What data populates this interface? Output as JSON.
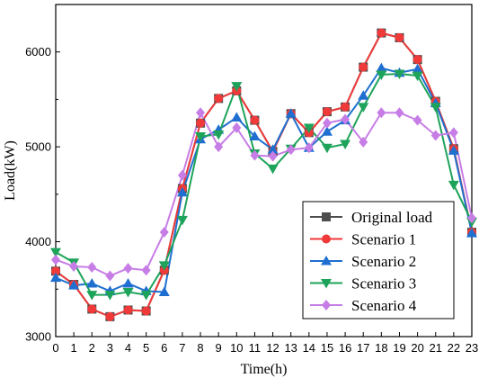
{
  "chart_data": {
    "type": "line",
    "title": "",
    "xlabel": "Time(h)",
    "ylabel": "Load(kW)",
    "x": [
      0,
      1,
      2,
      3,
      4,
      5,
      6,
      7,
      8,
      9,
      10,
      11,
      12,
      13,
      14,
      15,
      16,
      17,
      18,
      19,
      20,
      21,
      22,
      23
    ],
    "xlim": [
      0,
      23
    ],
    "ylim": [
      3000,
      6500
    ],
    "yticks": [
      3000,
      4000,
      5000,
      6000
    ],
    "grid": false,
    "legend_position": "bottom-right",
    "series": [
      {
        "name": "Original load",
        "color": "#4d4d4d",
        "marker": "square",
        "values": [
          3690,
          3550,
          3290,
          3210,
          3280,
          3270,
          3700,
          4560,
          5250,
          5510,
          5590,
          5280,
          4950,
          5350,
          5150,
          5370,
          5420,
          5840,
          6200,
          6150,
          5920,
          5480,
          4980,
          4100
        ]
      },
      {
        "name": "Scenario 1",
        "color": "#f03a3a",
        "marker": "circle",
        "values": [
          3690,
          3550,
          3290,
          3210,
          3280,
          3270,
          3700,
          4560,
          5250,
          5510,
          5590,
          5280,
          4950,
          5350,
          5150,
          5370,
          5420,
          5840,
          6200,
          6150,
          5920,
          5480,
          4980,
          4100
        ]
      },
      {
        "name": "Scenario 2",
        "color": "#1f6fd0",
        "marker": "triangle-up",
        "values": [
          3620,
          3540,
          3560,
          3480,
          3560,
          3480,
          3470,
          4520,
          5080,
          5180,
          5310,
          5110,
          4970,
          5350,
          4990,
          5160,
          5280,
          5540,
          5830,
          5780,
          5820,
          5460,
          4960,
          4090
        ]
      },
      {
        "name": "Scenario 3",
        "color": "#1ea35a",
        "marker": "triangle-down",
        "values": [
          3890,
          3780,
          3440,
          3440,
          3470,
          3440,
          3750,
          4230,
          5110,
          5130,
          5640,
          4930,
          4770,
          4980,
          5200,
          4990,
          5030,
          5420,
          5760,
          5770,
          5750,
          5420,
          4600,
          4210
        ]
      },
      {
        "name": "Scenario 4",
        "color": "#c77de6",
        "marker": "diamond",
        "values": [
          3810,
          3740,
          3730,
          3640,
          3720,
          3700,
          4100,
          4700,
          5360,
          5000,
          5200,
          4910,
          4900,
          4970,
          4990,
          5250,
          5290,
          5050,
          5360,
          5360,
          5280,
          5120,
          5150,
          4250
        ]
      }
    ]
  }
}
